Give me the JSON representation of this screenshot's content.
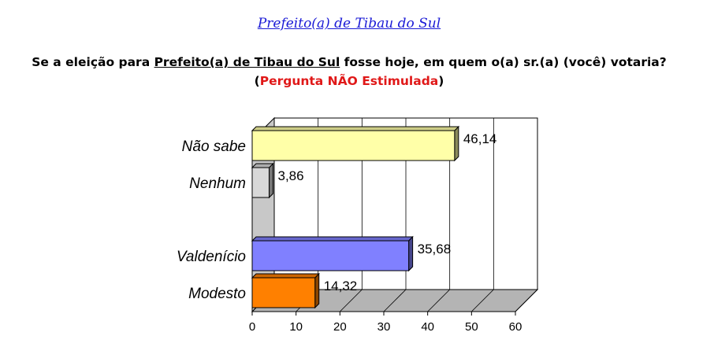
{
  "header": {
    "link_title": "Prefeito(a) de Tibau do Sul",
    "question_prefix": "Se a eleição para ",
    "question_underlined": "Prefeito(a) de Tibau do Sul",
    "question_suffix": " fosse hoje, em quem o(a) sr.(a) (você) votaria?",
    "subtitle_open": "(",
    "subtitle_red": "Pergunta NÃO Estimulada",
    "subtitle_close": ")"
  },
  "colors": {
    "title_link": "#1a1ad6",
    "subtitle_red": "#e01818"
  },
  "chart_data": {
    "type": "bar",
    "orientation": "horizontal",
    "three_d": true,
    "categories": [
      "Não sabe",
      "Nenhum",
      "Valdenício",
      "Modesto"
    ],
    "values": [
      46.14,
      3.86,
      35.68,
      14.32
    ],
    "value_labels": [
      "46,14",
      "3,86",
      "35,68",
      "14,32"
    ],
    "bar_colors": [
      "#ffffa8",
      "#d8d8d8",
      "#8080ff",
      "#ff8000"
    ],
    "xlim": [
      0,
      60
    ],
    "x_ticks": [
      "0",
      "10",
      "20",
      "30",
      "40",
      "50",
      "60"
    ],
    "grid": true
  }
}
